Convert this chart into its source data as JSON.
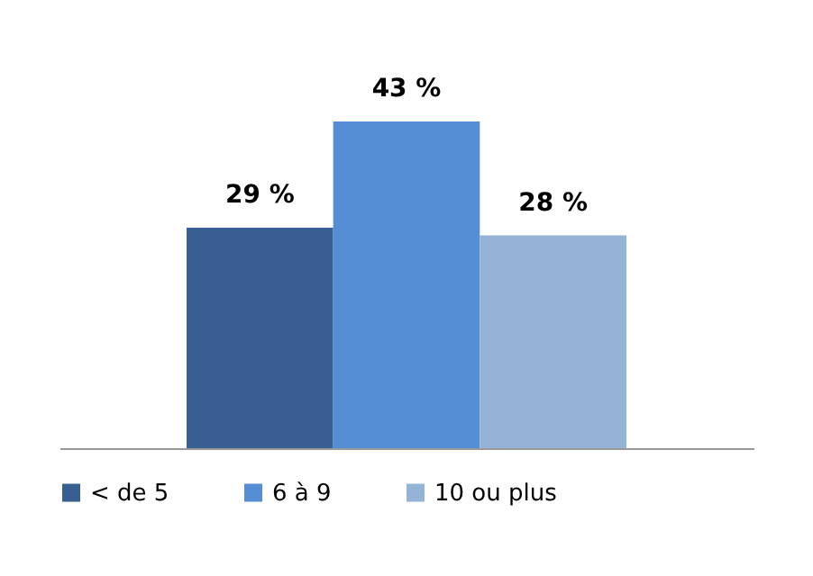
{
  "chart_data": {
    "type": "bar",
    "categories": [
      null
    ],
    "tick_labels": false,
    "grid": false,
    "legend": "bottom",
    "series": [
      {
        "name": "< de 5",
        "color": "#375f91",
        "values": [
          29
        ],
        "value_labels": [
          "29 %"
        ]
      },
      {
        "name": "6 à 9",
        "color": "#558ed5",
        "values": [
          43
        ],
        "value_labels": [
          "43 %"
        ]
      },
      {
        "name": "10 ou plus",
        "color": "#95b3d7",
        "values": [
          28
        ],
        "value_labels": [
          "28 %"
        ]
      }
    ]
  }
}
